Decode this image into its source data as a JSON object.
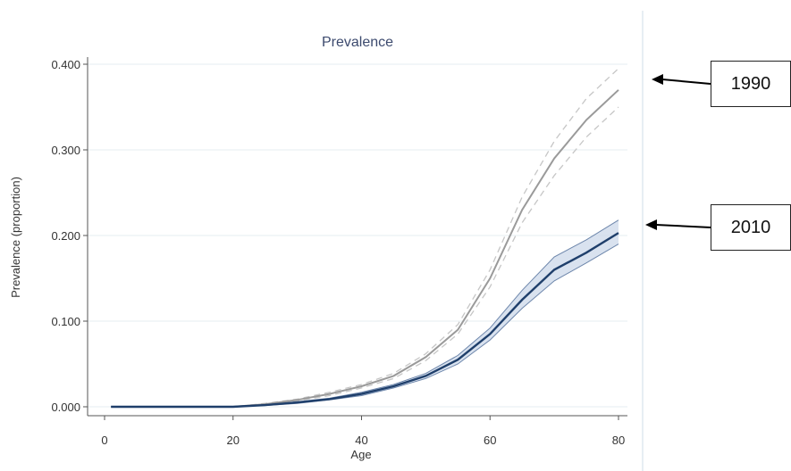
{
  "chart_data": {
    "type": "line",
    "title": "Prevalence",
    "xlabel": "Age",
    "ylabel": "Prevalence (proportion)",
    "xlim": [
      0,
      80
    ],
    "ylim": [
      0,
      0.4
    ],
    "x_ticks": [
      "0",
      "20",
      "40",
      "60",
      "80"
    ],
    "y_ticks": [
      "0.000",
      "0.100",
      "0.200",
      "0.300",
      "0.400"
    ],
    "grid": true,
    "series": [
      {
        "name": "1990",
        "color": "#9a9a9a",
        "x": [
          1,
          20,
          25,
          30,
          35,
          40,
          45,
          50,
          55,
          60,
          65,
          70,
          75,
          80
        ],
        "y": [
          0,
          0,
          0.003,
          0.008,
          0.015,
          0.024,
          0.036,
          0.058,
          0.09,
          0.15,
          0.23,
          0.29,
          0.335,
          0.37
        ],
        "lower": [
          0,
          0,
          0.002,
          0.007,
          0.013,
          0.022,
          0.033,
          0.054,
          0.085,
          0.14,
          0.215,
          0.27,
          0.315,
          0.35
        ],
        "upper": [
          0,
          0,
          0.004,
          0.009,
          0.017,
          0.026,
          0.039,
          0.062,
          0.096,
          0.16,
          0.245,
          0.31,
          0.36,
          0.395
        ]
      },
      {
        "name": "2010",
        "color": "#1f3f6b",
        "x": [
          1,
          20,
          25,
          30,
          35,
          40,
          45,
          50,
          55,
          60,
          65,
          70,
          75,
          80
        ],
        "y": [
          0,
          0,
          0.002,
          0.005,
          0.009,
          0.015,
          0.024,
          0.036,
          0.055,
          0.085,
          0.125,
          0.16,
          0.18,
          0.203
        ],
        "lower": [
          0,
          0,
          0.0015,
          0.004,
          0.008,
          0.013,
          0.022,
          0.033,
          0.05,
          0.078,
          0.115,
          0.147,
          0.168,
          0.19
        ],
        "upper": [
          0,
          0,
          0.0025,
          0.006,
          0.01,
          0.017,
          0.026,
          0.039,
          0.06,
          0.092,
          0.136,
          0.175,
          0.195,
          0.218
        ]
      }
    ],
    "annotations": [
      {
        "label": "1990",
        "series": "1990"
      },
      {
        "label": "2010",
        "series": "2010"
      }
    ]
  }
}
